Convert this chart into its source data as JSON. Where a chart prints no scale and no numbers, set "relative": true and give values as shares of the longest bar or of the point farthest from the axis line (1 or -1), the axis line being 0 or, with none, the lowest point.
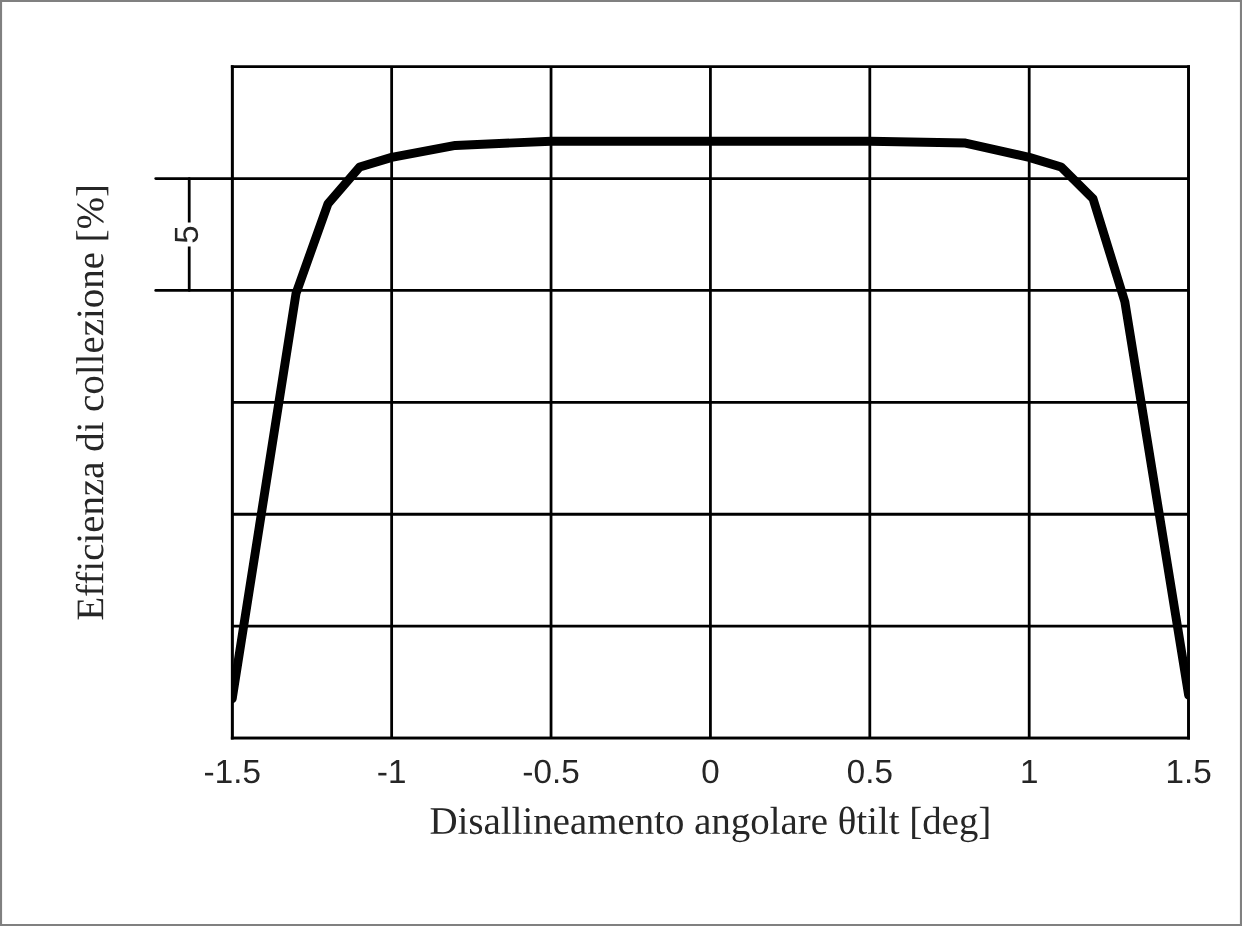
{
  "chart_data": {
    "type": "line",
    "relative": true,
    "xlabel": "Disallineamento angolare θtilt [deg]",
    "ylabel": "Efficienza di collezione [%]",
    "x": [
      -1.5,
      -1.3,
      -1.2,
      -1.1,
      -1.0,
      -0.8,
      -0.5,
      0.0,
      0.5,
      0.8,
      1.0,
      1.1,
      1.2,
      1.3,
      1.5
    ],
    "series": [
      {
        "color": "#000000",
        "values": [
          0.066,
          0.745,
          0.895,
          0.957,
          0.973,
          0.993,
          1,
          1,
          1,
          0.997,
          0.973,
          0.957,
          0.904,
          0.731,
          0.072
        ]
      }
    ],
    "xlim": [
      -1.5,
      1.5
    ],
    "xticks": [
      -1.5,
      -1,
      -0.5,
      0,
      0.5,
      1,
      1.5
    ],
    "annotations": [
      "5"
    ],
    "grid": true,
    "line_style": "solid",
    "marker": "none"
  }
}
